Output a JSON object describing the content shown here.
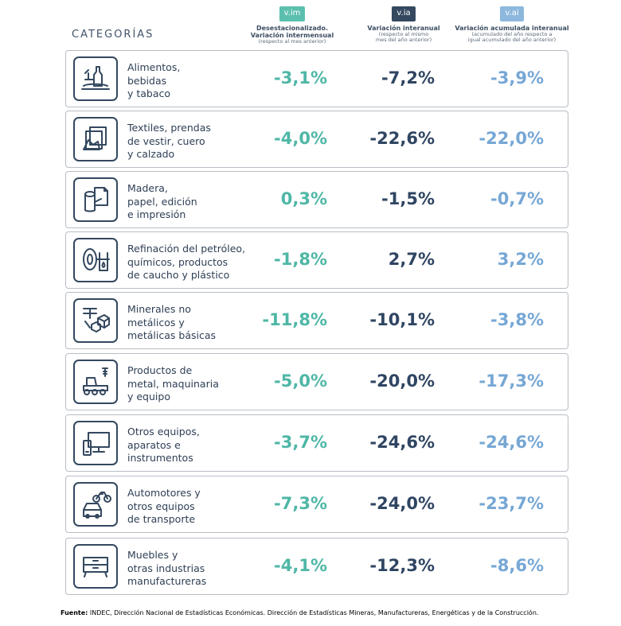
{
  "header": {
    "categories_title": "CATEGORÍAS",
    "columns": [
      {
        "badge": "v.im",
        "title1": "Desestacionalizado.",
        "title2": "Variación intermensual",
        "sub1": "(respecto al mes anterior)",
        "sub2": "",
        "color": "#5bbfae"
      },
      {
        "badge": "v.ia",
        "title1": "Variación interanual",
        "title2": "",
        "sub1": "(respecto al mismo",
        "sub2": "mes del año anterior)",
        "color": "#34495f"
      },
      {
        "badge": "v.ai",
        "title1": "Variación acumulada interanual",
        "title2": "",
        "sub1": "(acumulado del año respecto a",
        "sub2": "igual acumulado del año anterior)",
        "color": "#8db8de"
      }
    ]
  },
  "rows": [
    {
      "icon": "food-icon",
      "l1": "Alimentos,",
      "l2": "bebidas",
      "l3": "y tabaco",
      "vim": "-3,1%",
      "via": "-7,2%",
      "vai": "-3,9%"
    },
    {
      "icon": "textiles-icon",
      "l1": "Textiles, prendas",
      "l2": "de vestir, cuero",
      "l3": "y calzado",
      "vim": "-4,0%",
      "via": "-22,6%",
      "vai": "-22,0%"
    },
    {
      "icon": "wood-paper-icon",
      "l1": "Madera,",
      "l2": "papel, edición",
      "l3": "e impresión",
      "vim": "0,3%",
      "via": "-1,5%",
      "vai": "-0,7%"
    },
    {
      "icon": "petroleum-chemicals-icon",
      "l1": "Refinación del petróleo,",
      "l2": "químicos, productos",
      "l3": "de caucho y plástico",
      "vim": "-1,8%",
      "via": "2,7%",
      "vai": "3,2%"
    },
    {
      "icon": "minerals-metals-icon",
      "l1": "Minerales no",
      "l2": "metálicos y",
      "l3": "metálicas básicas",
      "vim": "-11,8%",
      "via": "-10,1%",
      "vai": "-3,8%"
    },
    {
      "icon": "tractor-machinery-icon",
      "l1": "Productos de",
      "l2": "metal, maquinaria",
      "l3": "y equipo",
      "vim": "-5,0%",
      "via": "-20,0%",
      "vai": "-17,3%"
    },
    {
      "icon": "devices-icon",
      "l1": "Otros equipos,",
      "l2": "aparatos e",
      "l3": "instrumentos",
      "vim": "-3,7%",
      "via": "-24,6%",
      "vai": "-24,6%"
    },
    {
      "icon": "vehicles-icon",
      "l1": "Automotores y",
      "l2": "otros equipos",
      "l3": "de transporte",
      "vim": "-7,3%",
      "via": "-24,0%",
      "vai": "-23,7%"
    },
    {
      "icon": "furniture-icon",
      "l1": "Muebles y",
      "l2": "otras industrias",
      "l3": "manufactureras",
      "vim": "-4,1%",
      "via": "-12,3%",
      "vai": "-8,6%"
    }
  ],
  "footer": {
    "label": "Fuente:",
    "text": " INDEC, Dirección Nacional de Estadísticas Económicas. Dirección de Estadísticas Mineras, Manufactureras, Energéticas y de la Construcción."
  }
}
